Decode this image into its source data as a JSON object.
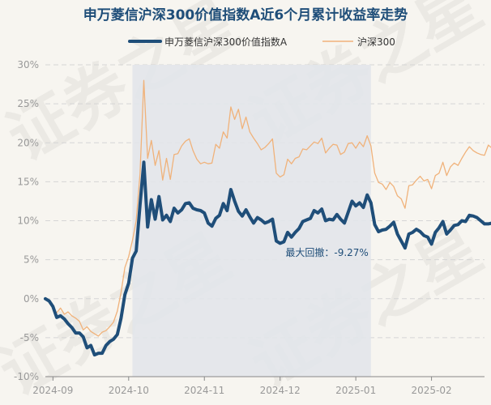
{
  "chart_data": {
    "type": "line",
    "title": "申万菱信沪深300价值指数A近6个月累计收益率走势",
    "y_axis": {
      "min": -10,
      "max": 30,
      "step": 5,
      "unit": "%",
      "grid": true
    },
    "y_tick_labels": [
      "-10%",
      "-5%",
      "0%",
      "5%",
      "10%",
      "15%",
      "20%",
      "25%",
      "30%"
    ],
    "x_tick_labels": [
      "2024-09",
      "2024-10",
      "2024-11",
      "2024-12",
      "2025-01",
      "2025-02"
    ],
    "x_tick_positions": [
      2,
      22,
      42,
      62,
      82,
      102
    ],
    "x_range": [
      0,
      116
    ],
    "legend_position": "top-center",
    "drawdown": {
      "label": "最大回撤：-9.27%",
      "start_index": 23,
      "end_index": 86,
      "fill_color": "#e2e6ea"
    },
    "watermark": "证券之星",
    "series": [
      {
        "name": "申万菱信沪深300价值指数A",
        "color": "#1f4e79",
        "values": [
          0.0,
          -0.3,
          -1.0,
          -2.4,
          -2.2,
          -2.6,
          -3.2,
          -3.7,
          -4.4,
          -4.4,
          -4.9,
          -6.3,
          -6.0,
          -7.2,
          -7.0,
          -7.0,
          -6.0,
          -5.5,
          -5.2,
          -4.6,
          -2.5,
          0.5,
          2.0,
          5.2,
          6.1,
          12.0,
          17.5,
          9.2,
          12.7,
          10.2,
          13.1,
          10.1,
          10.7,
          9.9,
          11.6,
          11.0,
          11.4,
          12.2,
          12.3,
          11.6,
          11.4,
          11.3,
          11.0,
          9.7,
          9.3,
          10.3,
          10.7,
          12.2,
          11.3,
          14.0,
          12.5,
          11.2,
          10.6,
          11.4,
          10.5,
          9.7,
          10.4,
          10.1,
          9.7,
          9.9,
          10.2,
          7.4,
          7.1,
          7.3,
          8.5,
          7.9,
          8.5,
          9.0,
          9.9,
          10.1,
          10.3,
          11.3,
          11.0,
          11.5,
          10.0,
          10.2,
          10.1,
          10.8,
          10.2,
          9.7,
          11.1,
          12.5,
          11.9,
          12.3,
          11.7,
          13.3,
          12.3,
          9.5,
          8.6,
          8.8,
          8.9,
          9.3,
          9.8,
          8.3,
          7.4,
          6.5,
          8.3,
          8.5,
          8.9,
          8.6,
          8.1,
          7.9,
          7.0,
          8.5,
          9.1,
          9.9,
          8.3,
          8.8,
          9.4,
          9.5,
          10.0,
          9.9,
          10.7,
          10.6,
          10.4,
          10.0,
          9.6,
          9.6,
          9.7,
          8.4,
          9.4
        ]
      },
      {
        "name": "沪深300",
        "color": "#f0b27a",
        "values": [
          0.0,
          -0.5,
          -1.2,
          -1.8,
          -1.2,
          -2.0,
          -1.7,
          -2.2,
          -2.5,
          -2.9,
          -4.0,
          -3.6,
          -4.2,
          -4.5,
          -4.8,
          -4.3,
          -4.1,
          -3.6,
          -3.0,
          -1.6,
          0.8,
          4.0,
          5.4,
          7.5,
          10.0,
          16.0,
          28.0,
          18.0,
          20.3,
          17.1,
          19.0,
          15.2,
          18.0,
          15.3,
          18.5,
          18.6,
          19.6,
          20.2,
          20.5,
          19.0,
          17.9,
          17.3,
          17.5,
          17.3,
          17.4,
          19.8,
          19.3,
          21.4,
          20.6,
          24.6,
          23.0,
          24.3,
          21.8,
          23.3,
          21.4,
          20.6,
          19.9,
          19.1,
          19.4,
          19.9,
          20.5,
          16.1,
          15.6,
          15.9,
          17.9,
          17.3,
          18.0,
          18.2,
          19.2,
          19.1,
          19.6,
          20.1,
          19.9,
          20.6,
          18.7,
          19.3,
          19.8,
          19.7,
          18.5,
          18.8,
          19.9,
          20.0,
          19.3,
          20.1,
          19.5,
          20.9,
          19.6,
          16.1,
          14.9,
          14.7,
          14.0,
          14.9,
          14.4,
          13.2,
          12.8,
          11.6,
          14.5,
          14.6,
          15.2,
          15.7,
          15.1,
          15.3,
          14.1,
          15.8,
          16.1,
          17.5,
          15.8,
          16.9,
          17.4,
          17.1,
          18.0,
          18.8,
          19.5,
          19.0,
          18.7,
          18.5,
          18.4,
          19.7,
          19.3,
          18.0,
          19.1
        ]
      }
    ]
  }
}
